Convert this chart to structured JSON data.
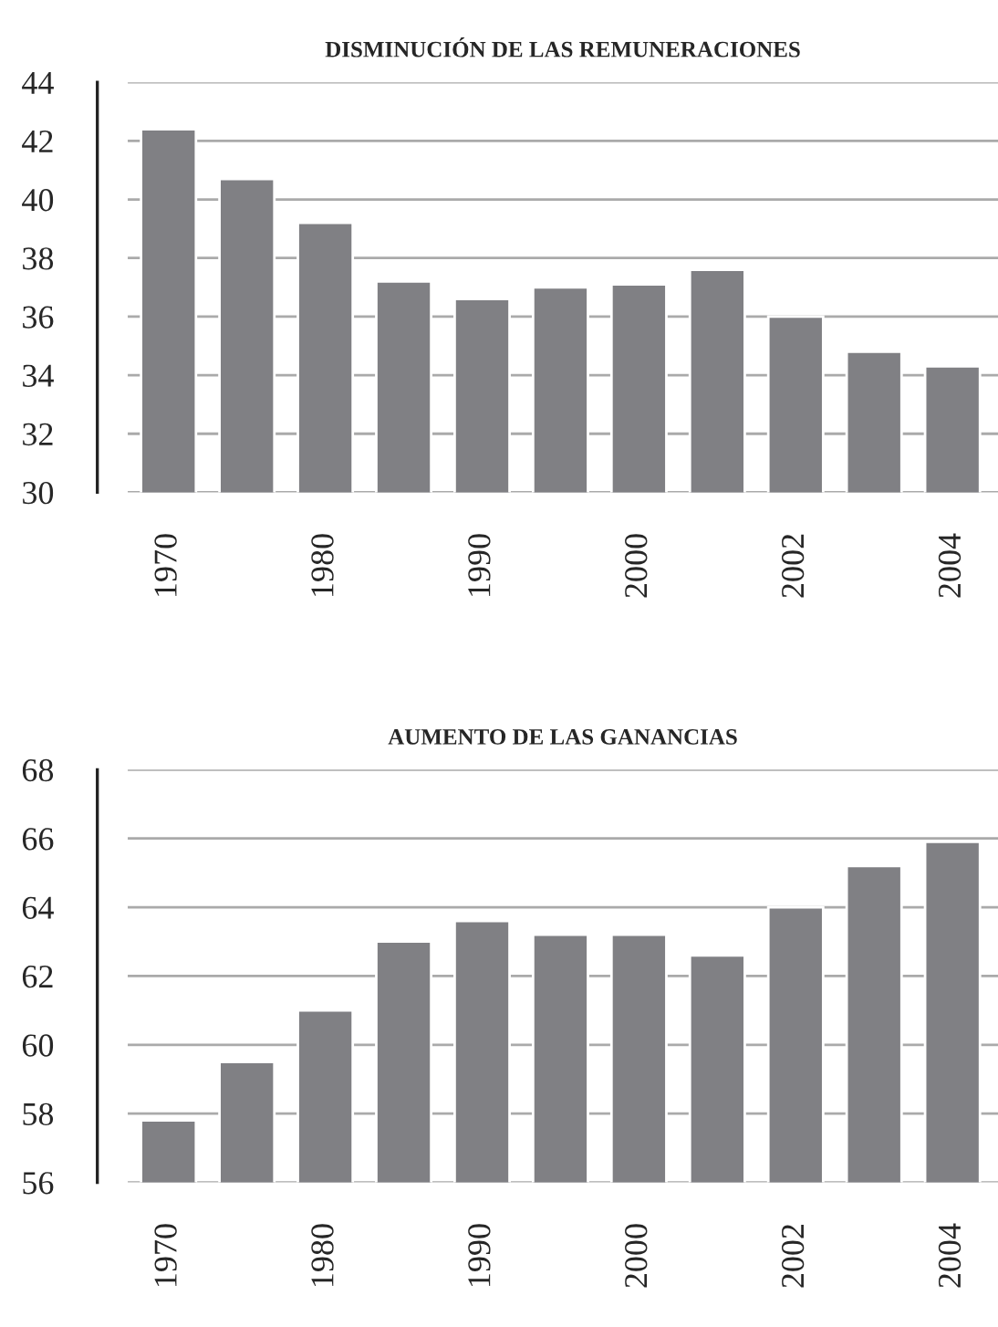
{
  "chart_data": [
    {
      "type": "bar",
      "title": "DISMINUCIÓN DE LAS REMUNERACIONES",
      "categories": [
        "1970",
        null,
        "1980",
        null,
        "1990",
        null,
        "2000",
        null,
        "2002",
        null,
        "2004"
      ],
      "series": [
        {
          "color": "#808084",
          "values": [
            42.4,
            40.7,
            39.2,
            37.2,
            36.6,
            37.0,
            37.1,
            37.6,
            36.0,
            34.8,
            34.3
          ]
        }
      ],
      "ylim": [
        30,
        44
      ],
      "yticks": [
        30,
        32,
        34,
        36,
        38,
        40,
        42,
        44
      ],
      "grid": "y"
    },
    {
      "type": "bar",
      "title": "AUMENTO DE LAS GANANCIAS",
      "categories": [
        "1970",
        null,
        "1980",
        null,
        "1990",
        null,
        "2000",
        null,
        "2002",
        null,
        "2004"
      ],
      "series": [
        {
          "color": "#808084",
          "values": [
            57.8,
            59.5,
            61.0,
            63.0,
            63.6,
            63.2,
            63.2,
            62.6,
            64.0,
            65.2,
            65.9
          ]
        }
      ],
      "ylim": [
        56,
        68
      ],
      "yticks": [
        56,
        58,
        60,
        62,
        64,
        66,
        68
      ],
      "grid": "y"
    }
  ]
}
